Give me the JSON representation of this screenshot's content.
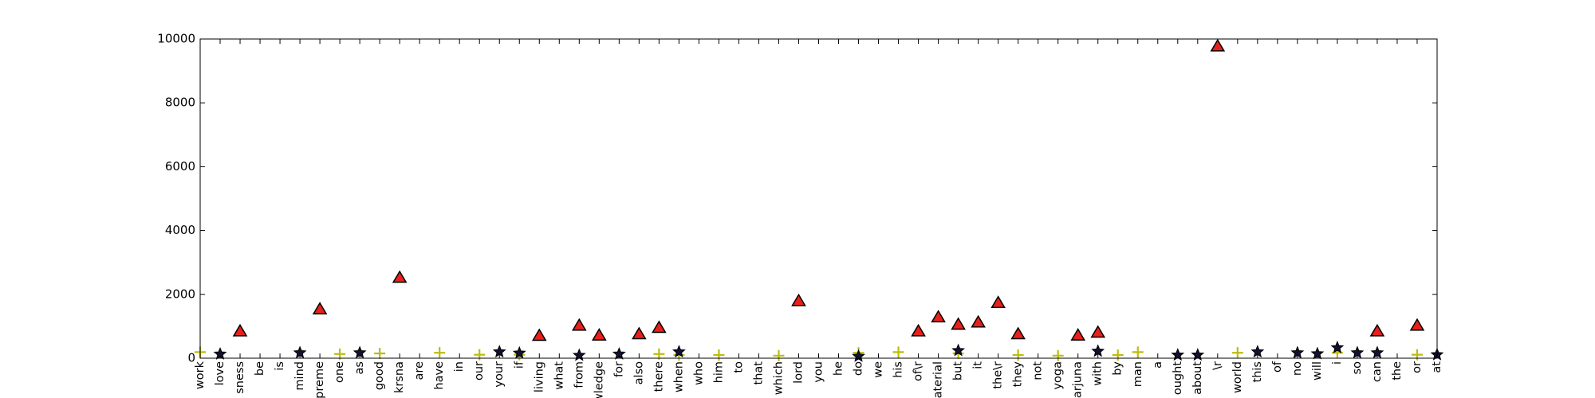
{
  "chart_data": {
    "type": "scatter",
    "title": "",
    "xlabel": "",
    "ylabel": "",
    "ylim": [
      0,
      10000
    ],
    "yticks": [
      0,
      2000,
      4000,
      6000,
      8000,
      10000
    ],
    "grid": false,
    "categories": [
      "work",
      "love",
      "sness",
      "be",
      "is",
      "mind",
      "preme",
      "one",
      "as",
      "good",
      "krsna",
      "are",
      "have",
      "in",
      "our",
      "your",
      "if",
      "living",
      "what",
      "from",
      "wledge",
      "for",
      "also",
      "there",
      "when",
      "who",
      "him",
      "to",
      "that",
      "which",
      "lord",
      "you",
      "he",
      "do",
      "we",
      "his",
      "of\\r",
      "aterial",
      "but",
      "it",
      "the\\r",
      "they",
      "not",
      "yoga",
      "arjuna",
      "with",
      "by",
      "man",
      "a",
      "ought",
      "about",
      "\\r",
      "world",
      "this",
      "of",
      "no",
      "will",
      "i",
      "so",
      "can",
      "the",
      "or",
      "at"
    ],
    "series": [
      {
        "marker": "triangle",
        "color": "#e8201b",
        "points": [
          {
            "x": "sness",
            "y": 830
          },
          {
            "x": "preme",
            "y": 1520
          },
          {
            "x": "krsna",
            "y": 2510
          },
          {
            "x": "living",
            "y": 690
          },
          {
            "x": "from",
            "y": 1010
          },
          {
            "x": "wledge",
            "y": 700
          },
          {
            "x": "also",
            "y": 740
          },
          {
            "x": "there",
            "y": 940
          },
          {
            "x": "lord",
            "y": 1780
          },
          {
            "x": "of\\r",
            "y": 830
          },
          {
            "x": "aterial",
            "y": 1270
          },
          {
            "x": "but",
            "y": 1040
          },
          {
            "x": "it",
            "y": 1110
          },
          {
            "x": "the\\r",
            "y": 1720
          },
          {
            "x": "they",
            "y": 740
          },
          {
            "x": "arjuna",
            "y": 700
          },
          {
            "x": "with",
            "y": 790
          },
          {
            "x": "\\r",
            "y": 9760
          },
          {
            "x": "can",
            "y": 830
          },
          {
            "x": "or",
            "y": 1010
          }
        ]
      },
      {
        "marker": "star",
        "color": "#111133",
        "points": [
          {
            "x": "love",
            "y": 130
          },
          {
            "x": "mind",
            "y": 170
          },
          {
            "x": "as",
            "y": 170
          },
          {
            "x": "your",
            "y": 200
          },
          {
            "x": "if",
            "y": 160
          },
          {
            "x": "from",
            "y": 90
          },
          {
            "x": "for",
            "y": 130
          },
          {
            "x": "when",
            "y": 200
          },
          {
            "x": "do",
            "y": 60
          },
          {
            "x": "but",
            "y": 240
          },
          {
            "x": "with",
            "y": 220
          },
          {
            "x": "ought",
            "y": 100
          },
          {
            "x": "about",
            "y": 100
          },
          {
            "x": "this",
            "y": 200
          },
          {
            "x": "no",
            "y": 170
          },
          {
            "x": "will",
            "y": 140
          },
          {
            "x": "i",
            "y": 330
          },
          {
            "x": "so",
            "y": 170
          },
          {
            "x": "can",
            "y": 170
          },
          {
            "x": "at",
            "y": 110
          }
        ]
      },
      {
        "marker": "plus",
        "color": "#bcbc10",
        "points": [
          {
            "x": "work",
            "y": 190
          },
          {
            "x": "one",
            "y": 130
          },
          {
            "x": "good",
            "y": 150
          },
          {
            "x": "have",
            "y": 170
          },
          {
            "x": "our",
            "y": 110
          },
          {
            "x": "if",
            "y": 110
          },
          {
            "x": "there",
            "y": 130
          },
          {
            "x": "when",
            "y": 100
          },
          {
            "x": "him",
            "y": 100
          },
          {
            "x": "which",
            "y": 80
          },
          {
            "x": "do",
            "y": 170
          },
          {
            "x": "his",
            "y": 190
          },
          {
            "x": "but",
            "y": 150
          },
          {
            "x": "they",
            "y": 100
          },
          {
            "x": "yoga",
            "y": 80
          },
          {
            "x": "by",
            "y": 100
          },
          {
            "x": "man",
            "y": 190
          },
          {
            "x": "world",
            "y": 170
          },
          {
            "x": "i",
            "y": 170
          },
          {
            "x": "or",
            "y": 110
          }
        ]
      }
    ]
  }
}
